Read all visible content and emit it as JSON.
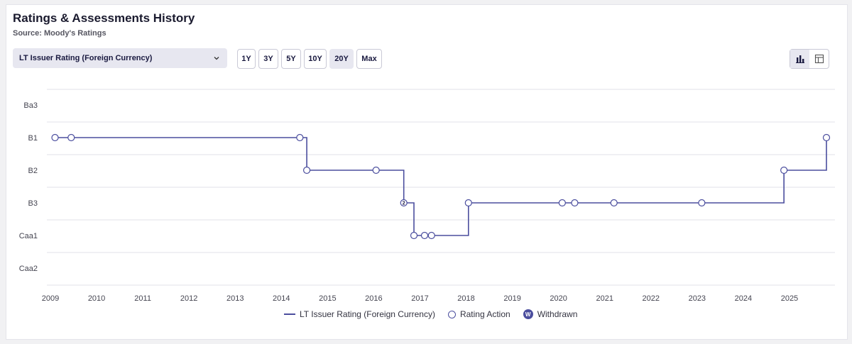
{
  "header": {
    "title": "Ratings & Assessments History",
    "subtitle": "Source: Moody's Ratings"
  },
  "controls": {
    "rating_type": "LT Issuer Rating (Foreign Currency)",
    "ranges": [
      "1Y",
      "3Y",
      "5Y",
      "10Y",
      "20Y",
      "Max"
    ],
    "active_range": "20Y",
    "view_active": "chart"
  },
  "colors": {
    "series": "#4b4e9e",
    "grid": "#e2e2e8"
  },
  "legend": {
    "series_label": "LT Issuer Rating (Foreign Currency)",
    "action_label": "Rating Action",
    "withdrawn_label": "Withdrawn",
    "withdrawn_symbol": "W"
  },
  "chart_data": {
    "type": "line",
    "step": true,
    "y_categories": [
      "Ba3",
      "B1",
      "B2",
      "B3",
      "Caa1",
      "Caa2"
    ],
    "x_ticks": [
      "2009",
      "2010",
      "2011",
      "2012",
      "2013",
      "2014",
      "2015",
      "2016",
      "2017",
      "2018",
      "2019",
      "2020",
      "2021",
      "2022",
      "2023",
      "2024",
      "2025"
    ],
    "xlim": [
      2009,
      2025.8
    ],
    "grid": true,
    "legend_position": "bottom",
    "series": [
      {
        "name": "LT Issuer Rating (Foreign Currency)",
        "points": [
          {
            "x": 2009.1,
            "y": "B1"
          },
          {
            "x": 2009.45,
            "y": "B1"
          },
          {
            "x": 2014.4,
            "y": "B1"
          },
          {
            "x": 2014.55,
            "y": "B2"
          },
          {
            "x": 2016.05,
            "y": "B2"
          },
          {
            "x": 2016.65,
            "y": "B3",
            "label": "2"
          },
          {
            "x": 2016.87,
            "y": "Caa1"
          },
          {
            "x": 2017.1,
            "y": "Caa1"
          },
          {
            "x": 2017.25,
            "y": "Caa1"
          },
          {
            "x": 2018.05,
            "y": "B3"
          },
          {
            "x": 2020.08,
            "y": "B3"
          },
          {
            "x": 2020.35,
            "y": "B3"
          },
          {
            "x": 2021.2,
            "y": "B3"
          },
          {
            "x": 2023.1,
            "y": "B3"
          },
          {
            "x": 2024.88,
            "y": "B2"
          },
          {
            "x": 2025.8,
            "y": "B1"
          }
        ]
      }
    ]
  }
}
